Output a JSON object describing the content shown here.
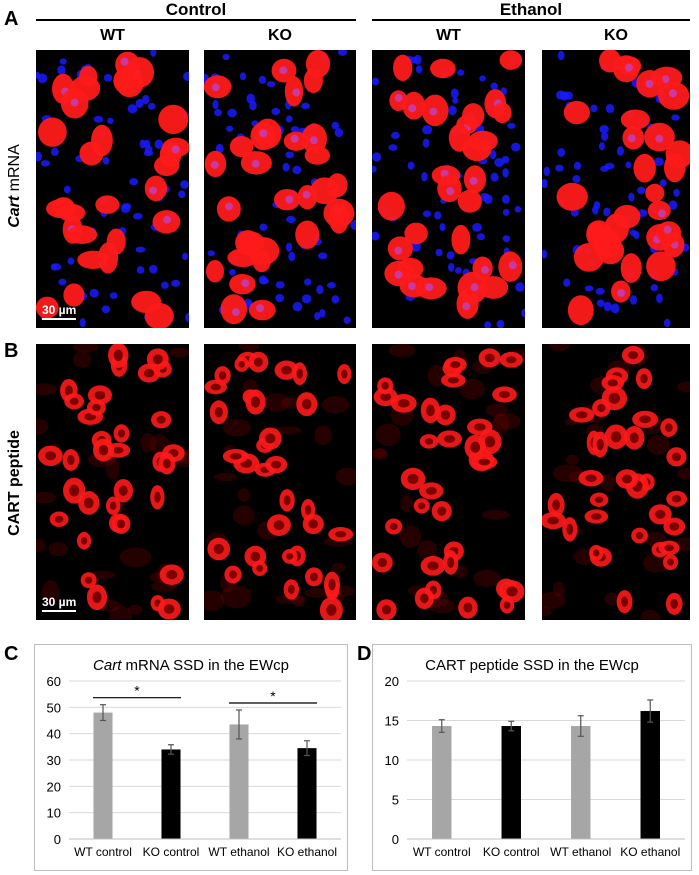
{
  "figure": {
    "panel_a": "A",
    "panel_b": "B",
    "panel_c": "C",
    "panel_d": "D",
    "group_control": "Control",
    "group_ethanol": "Ethanol",
    "col_wt": "WT",
    "col_ko": "KO",
    "row_a_italic": "Cart",
    "row_a_rest": " mRNA",
    "row_b": "CART peptide",
    "scale_label": "30 µm"
  },
  "colors": {
    "red_signal": "#ff1a1a",
    "blue_nuclei": "#1a1aff",
    "bar_wt": "#a6a6a6",
    "bar_ko": "#000000"
  },
  "chart_data": [
    {
      "type": "bar",
      "title_italic": "Cart",
      "title_rest": " mRNA SSD in the EWcp",
      "categories": [
        "WT control",
        "KO control",
        "WT ethanol",
        "KO ethanol"
      ],
      "values": [
        48,
        34,
        43.5,
        34.5
      ],
      "errors": [
        3,
        1.8,
        5.5,
        2.8
      ],
      "bar_colors": [
        "#a6a6a6",
        "#000000",
        "#a6a6a6",
        "#000000"
      ],
      "ylim": [
        0,
        60
      ],
      "yticks": [
        0,
        10,
        20,
        30,
        40,
        50,
        60
      ],
      "significance": [
        {
          "from": 0,
          "to": 1,
          "label": "*"
        },
        {
          "from": 2,
          "to": 3,
          "label": "*"
        }
      ],
      "grid": true
    },
    {
      "type": "bar",
      "title": "CART peptide SSD in the EWcp",
      "categories": [
        "WT control",
        "KO control",
        "WT ethanol",
        "KO ethanol"
      ],
      "values": [
        14.3,
        14.3,
        14.3,
        16.2
      ],
      "errors": [
        0.8,
        0.6,
        1.3,
        1.4
      ],
      "bar_colors": [
        "#a6a6a6",
        "#000000",
        "#a6a6a6",
        "#000000"
      ],
      "ylim": [
        0,
        20
      ],
      "yticks": [
        0,
        5,
        10,
        15,
        20
      ],
      "grid": true
    }
  ]
}
